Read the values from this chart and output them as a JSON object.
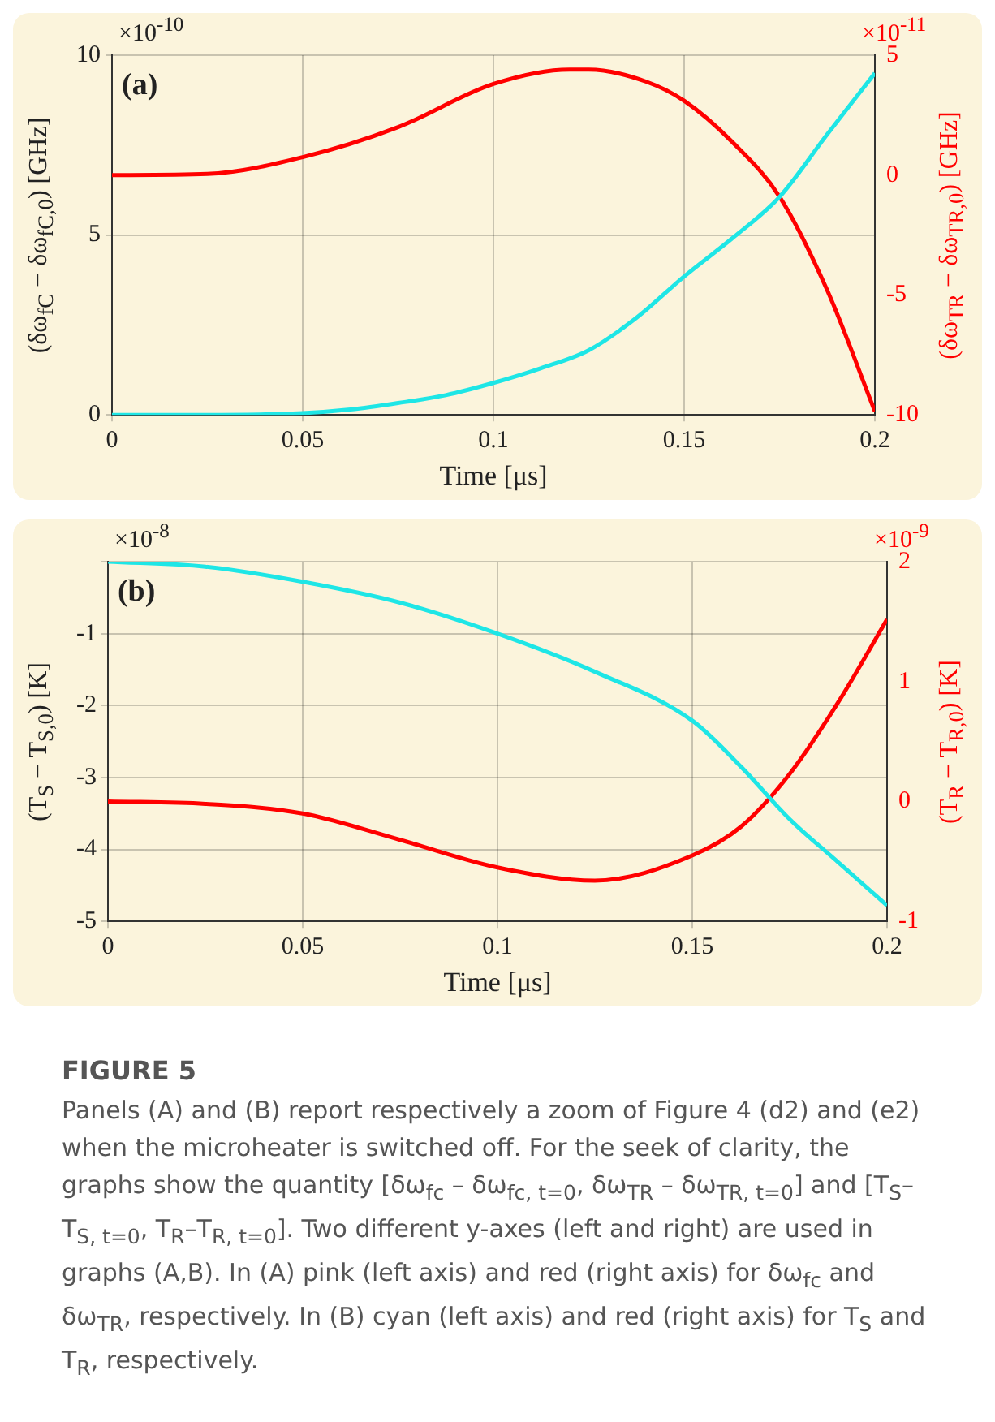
{
  "chart_data": [
    {
      "type": "line",
      "xlabel": "Time [μs]",
      "ylabel": "(δω$_{fC}$ − δω$_{fC,0}$) [GHz]",
      "y2label": "(δω$_{TR}$ − δω$_{TR,0}$) [GHz]",
      "annotations": [
        "×10$^{-10}$",
        "×10$^{-11}$",
        "(a)"
      ],
      "xlim": [
        0,
        0.2
      ],
      "xticks": [
        0,
        0.05,
        0.1,
        0.15,
        0.2
      ],
      "ylim": [
        0,
        10
      ],
      "yticks": [
        0,
        5,
        10
      ],
      "y2lim": [
        -10,
        5
      ],
      "y2ticks": [
        -10,
        -5,
        0,
        5
      ],
      "grid": true,
      "line_style": "solid",
      "marker": "none",
      "series": [
        {
          "color": "#1ee6e6",
          "x": [
            0,
            0.025,
            0.05,
            0.0625,
            0.075,
            0.0875,
            0.1,
            0.1125,
            0.125,
            0.1375,
            0.15,
            0.1625,
            0.175,
            0.1875,
            0.2
          ],
          "values": [
            0,
            0,
            0.05,
            0.15,
            0.33,
            0.55,
            0.89,
            1.3,
            1.8,
            2.7,
            3.85,
            4.9,
            6.06,
            7.8,
            9.5
          ]
        },
        {
          "color": "#ff0000",
          "axis": "y2",
          "x": [
            0,
            0.025,
            0.05,
            0.075,
            0.1,
            0.12,
            0.125,
            0.14,
            0.15,
            0.1625,
            0.175,
            0.1875,
            0.2
          ],
          "values": [
            0,
            0.05,
            0.75,
            2.0,
            3.8,
            4.4,
            4.4,
            3.9,
            3.1,
            1.4,
            -0.9,
            -4.8,
            -9.85
          ]
        }
      ]
    },
    {
      "type": "line",
      "xlabel": "Time [μs]",
      "ylabel": "(T$_{S}$ − T$_{S,0}$) [K]",
      "y2label": "(T$_{R}$ − T$_{R,0}$) [K]",
      "annotations": [
        "×10$^{-8}$",
        "×10$^{-9}$",
        "(b)"
      ],
      "xlim": [
        0,
        0.2
      ],
      "xticks": [
        0,
        0.05,
        0.1,
        0.15,
        0.2
      ],
      "ylim": [
        -5,
        0
      ],
      "yticks": [
        -5,
        -4,
        -3,
        -2,
        -1,
        {
          "value": 0,
          "label": null
        }
      ],
      "y2lim": [
        -1,
        2
      ],
      "y2ticks": [
        -1,
        0,
        1,
        2
      ],
      "grid": true,
      "line_style": "solid",
      "marker": "none",
      "series": [
        {
          "color": "#1ee6e6",
          "x": [
            0,
            0.025,
            0.05,
            0.075,
            0.1,
            0.125,
            0.15,
            0.1625,
            0.175,
            0.1875,
            0.2
          ],
          "values": [
            0,
            -0.07,
            -0.28,
            -0.57,
            -1.0,
            -1.53,
            -2.21,
            -2.85,
            -3.58,
            -4.18,
            -4.78
          ]
        },
        {
          "color": "#ff0000",
          "axis": "y2",
          "x": [
            0,
            0.025,
            0.05,
            0.075,
            0.1,
            0.125,
            0.15,
            0.1625,
            0.175,
            0.1875,
            0.2
          ],
          "values": [
            0,
            -0.02,
            -0.1,
            -0.32,
            -0.55,
            -0.66,
            -0.45,
            -0.21,
            0.23,
            0.83,
            1.52
          ]
        }
      ]
    },
    {
      "type": "other",
      "title": "FIGURE 5",
      "annotations": [
        "Panels (A) and (B) report respectively a zoom of Figure 4 (d2) and (e2) when the microheater is switched off. For the seek of clarity, the graphs show the quantity [δω$_{fc}$ – δω$_{fc, t=0}$, δω$_{TR}$ – δω$_{TR, t=0}$] and [T$_{S}$–T$_{S, t=0}$, T$_{R}$–T$_{R, t=0}$]. Two different y-axes (left and right) are used in graphs (A,B). In (A) pink (left axis) and red (right axis) for δω$_{fc}$ and δω$_{TR}$, respectively. In (B) cyan (left axis) and red (right axis) for T$_{S}$ and T$_{R}$, respectively."
      ]
    }
  ]
}
